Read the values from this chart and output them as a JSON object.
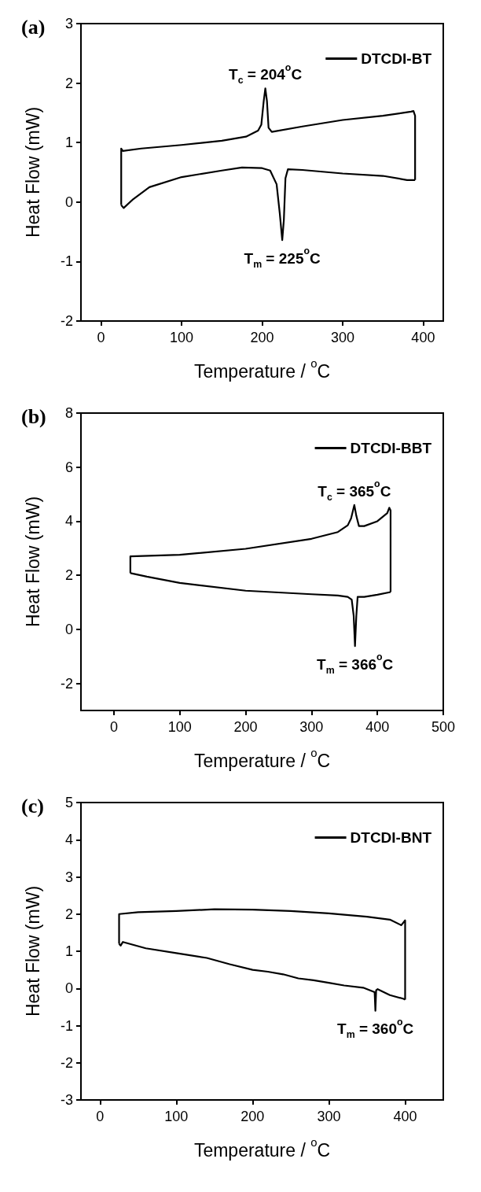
{
  "chart_data": [
    {
      "type": "line",
      "title": "(a)",
      "xlabel": "Temperature / $^{o}$C",
      "ylabel": "Heat Flow (mW)",
      "xlim": [
        -25,
        425
      ],
      "xticks": [
        0,
        100,
        200,
        300,
        400
      ],
      "ylim": [
        -2,
        3
      ],
      "yticks": [
        -2,
        -1,
        0,
        1,
        2,
        3
      ],
      "legend": "top right",
      "grid": false,
      "marker": "none",
      "line_style": "solid",
      "series": [
        {
          "name": "DTCDI-BT",
          "color": "#000000",
          "x": [
            25,
            25,
            27,
            50,
            100,
            150,
            180,
            195,
            199,
            202,
            204,
            206,
            208,
            212,
            250,
            300,
            350,
            385,
            388,
            390,
            390
          ],
          "values": [
            -0.05,
            0.9,
            0.86,
            0.9,
            0.96,
            1.03,
            1.1,
            1.2,
            1.3,
            1.7,
            1.91,
            1.7,
            1.25,
            1.18,
            1.27,
            1.38,
            1.45,
            1.52,
            1.53,
            1.45,
            0.37
          ]
        },
        {
          "color": "#000000",
          "x": [
            25,
            28,
            40,
            60,
            100,
            150,
            175,
            200,
            210,
            218,
            222,
            225,
            227,
            229,
            232,
            250,
            300,
            350,
            380,
            390
          ],
          "values": [
            -0.05,
            -0.1,
            0.05,
            0.25,
            0.42,
            0.53,
            0.58,
            0.57,
            0.53,
            0.3,
            -0.2,
            -0.64,
            -0.3,
            0.4,
            0.55,
            0.54,
            0.48,
            0.44,
            0.37,
            0.37
          ]
        }
      ],
      "annotations": [
        {
          "text": "T$_{c}$ = 204$^{o}$C",
          "x": 204,
          "y": 1.91
        },
        {
          "text": "T$_{m}$ = 225$^{o}$C",
          "x": 225,
          "y": -0.64
        }
      ]
    },
    {
      "type": "line",
      "title": "(b)",
      "xlabel": "Temperature / $^{o}$C",
      "ylabel": "Heat Flow (mW)",
      "xlim": [
        -50,
        500
      ],
      "xticks": [
        0,
        100,
        200,
        300,
        400,
        500
      ],
      "ylim": [
        -3,
        8
      ],
      "yticks": [
        -2,
        0,
        2,
        4,
        6,
        8
      ],
      "legend": "top right",
      "grid": false,
      "marker": "none",
      "line_style": "solid",
      "series": [
        {
          "name": "DTCDI-BBT",
          "color": "#000000",
          "x": [
            25,
            25,
            100,
            200,
            300,
            340,
            355,
            360,
            363,
            365,
            368,
            372,
            380,
            400,
            415,
            418,
            420,
            420
          ],
          "values": [
            2.08,
            2.7,
            2.76,
            2.98,
            3.35,
            3.6,
            3.85,
            4.1,
            4.4,
            4.6,
            4.2,
            3.82,
            3.82,
            4.0,
            4.3,
            4.5,
            4.4,
            1.38
          ]
        },
        {
          "color": "#000000",
          "x": [
            25,
            50,
            100,
            200,
            300,
            340,
            355,
            361,
            364,
            366,
            368,
            370,
            380,
            400,
            420
          ],
          "values": [
            2.08,
            1.95,
            1.72,
            1.43,
            1.3,
            1.25,
            1.2,
            1.1,
            0.5,
            -0.62,
            0.5,
            1.2,
            1.2,
            1.28,
            1.38
          ]
        }
      ],
      "annotations": [
        {
          "text": "T$_{c}$ = 365$^{o}$C",
          "x": 365,
          "y": 4.6
        },
        {
          "text": "T$_{m}$ = 366$^{o}$C",
          "x": 366,
          "y": -0.62
        }
      ]
    },
    {
      "type": "line",
      "title": "(c)",
      "xlabel": "Temperature / $^{o}$C",
      "ylabel": "Heat Flow (mW)",
      "xlim": [
        -25,
        450
      ],
      "xticks": [
        0,
        100,
        200,
        300,
        400
      ],
      "ylim": [
        -3,
        5
      ],
      "yticks": [
        -3,
        -2,
        -1,
        0,
        1,
        2,
        3,
        4,
        5
      ],
      "legend": "top right",
      "grid": false,
      "marker": "none",
      "line_style": "solid",
      "series": [
        {
          "name": "DTCDI-BNT",
          "color": "#000000",
          "x": [
            25,
            25,
            50,
            100,
            150,
            200,
            250,
            300,
            350,
            380,
            395,
            400,
            400
          ],
          "values": [
            1.2,
            2.0,
            2.05,
            2.08,
            2.13,
            2.12,
            2.08,
            2.02,
            1.93,
            1.85,
            1.7,
            1.83,
            -0.3
          ]
        },
        {
          "color": "#000000",
          "x": [
            25,
            27,
            30,
            60,
            100,
            140,
            170,
            200,
            220,
            240,
            260,
            280,
            300,
            320,
            345,
            360,
            361,
            362,
            364,
            380,
            398,
            400
          ],
          "values": [
            1.2,
            1.15,
            1.25,
            1.08,
            0.95,
            0.82,
            0.65,
            0.5,
            0.45,
            0.38,
            0.27,
            0.22,
            0.15,
            0.08,
            0.02,
            -0.1,
            -0.6,
            -0.05,
            -0.02,
            -0.18,
            -0.28,
            -0.3
          ]
        }
      ],
      "annotations": [
        {
          "text": "T$_{m}$ = 360$^{o}$C",
          "x": 361,
          "y": -0.6
        }
      ]
    }
  ]
}
